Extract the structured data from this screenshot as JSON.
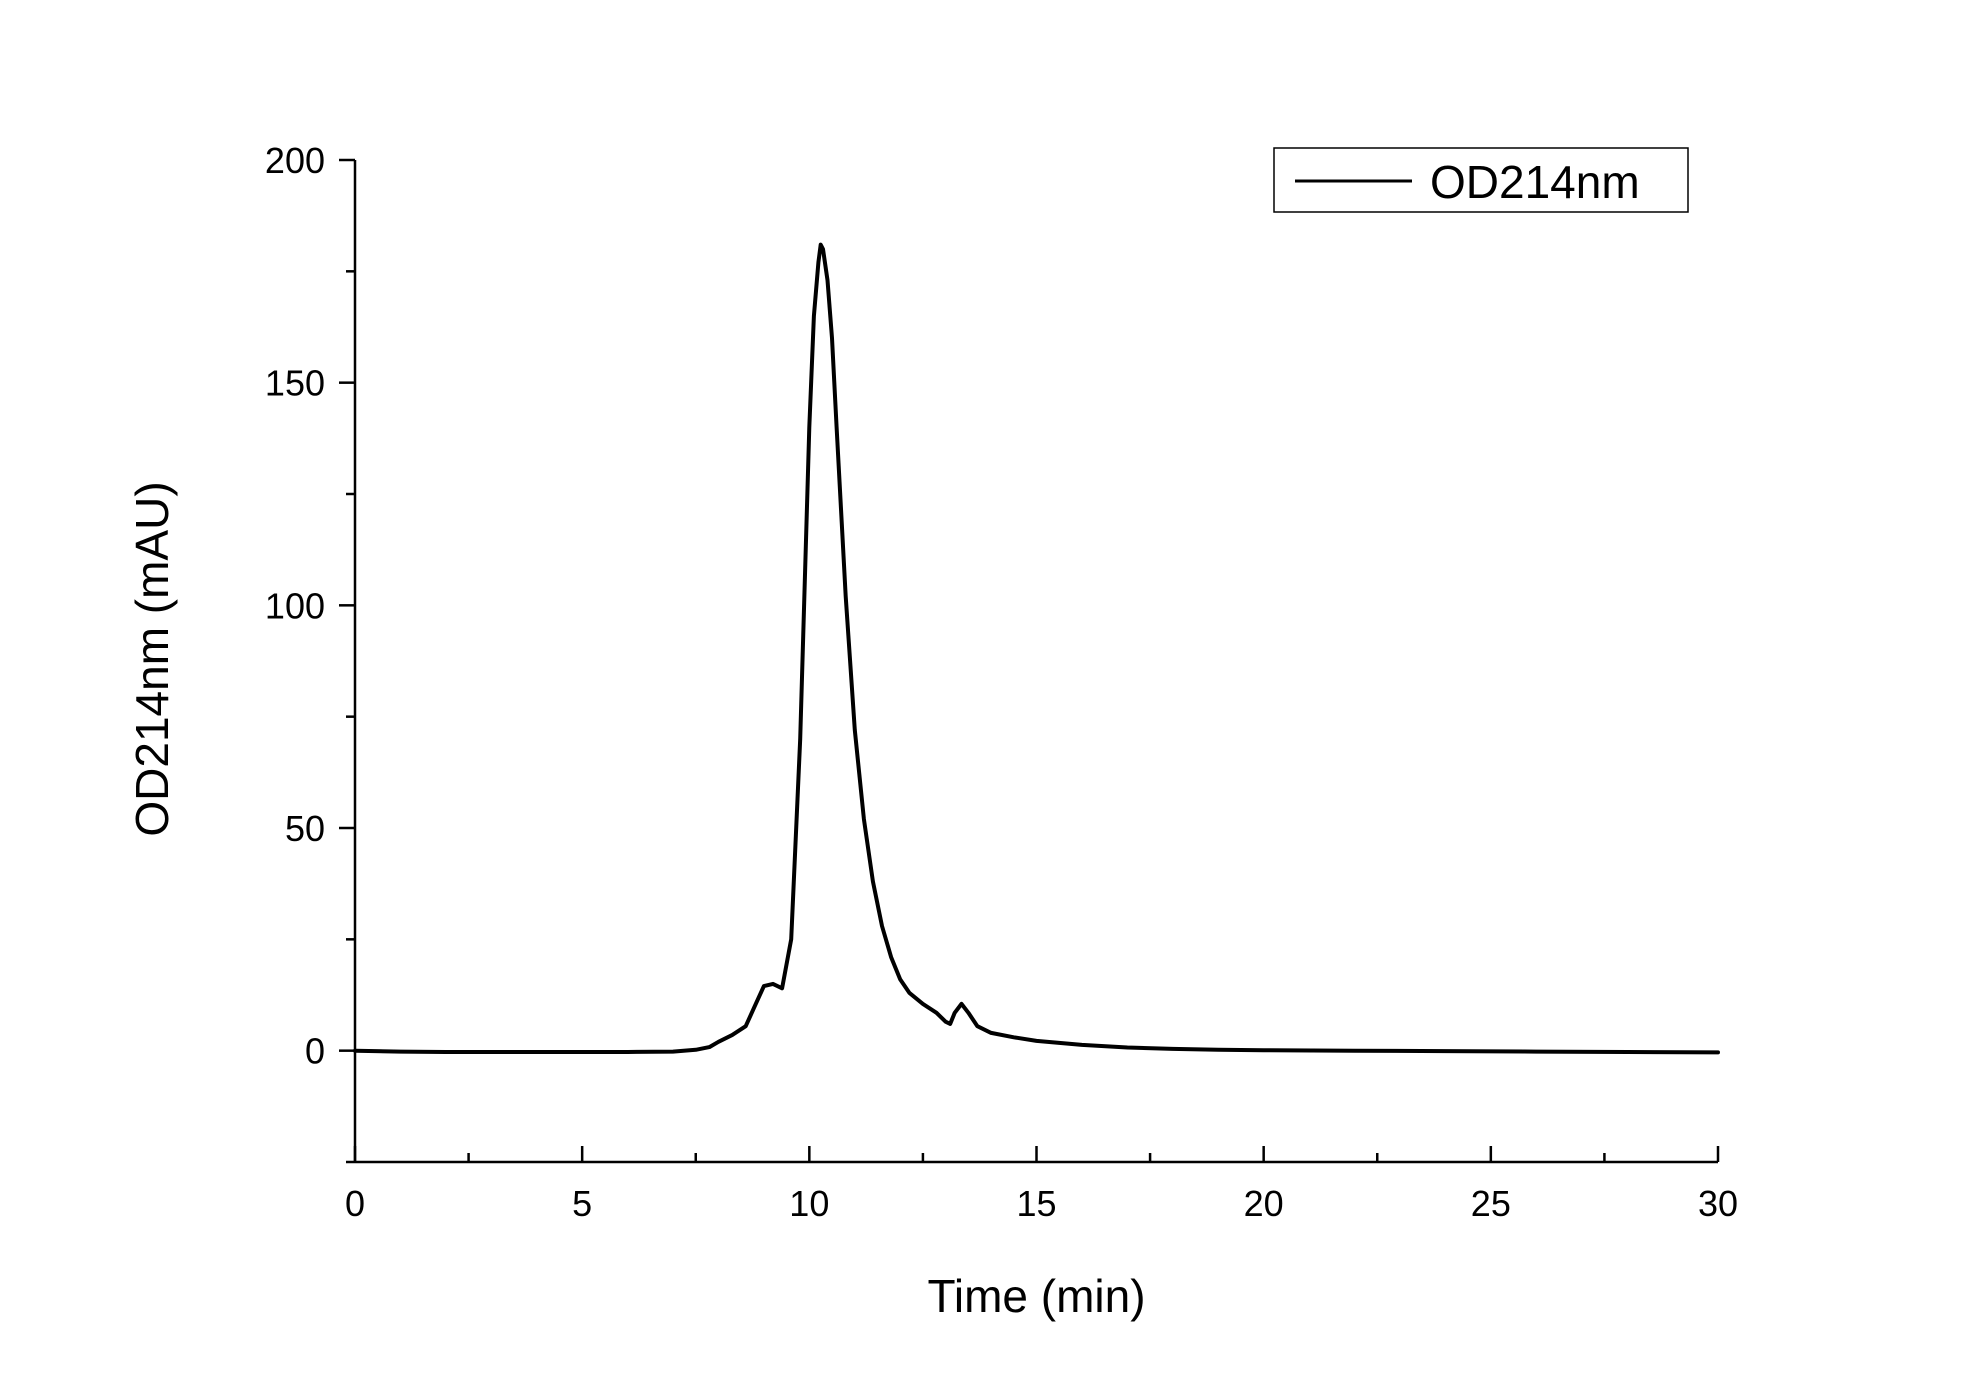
{
  "chart_data": {
    "type": "line",
    "title": "",
    "xlabel": "Time (min)",
    "ylabel": "OD214nm (mAU)",
    "xlim": [
      0,
      30
    ],
    "ylim": [
      -25,
      200
    ],
    "x_ticks": [
      "0",
      "5",
      "10",
      "15",
      "20",
      "25",
      "30"
    ],
    "y_ticks": [
      "0",
      "50",
      "100",
      "150",
      "200"
    ],
    "grid": false,
    "legend": {
      "placement": "top-right",
      "entries": [
        "OD214nm"
      ]
    },
    "line_color": "#000000",
    "series": [
      {
        "name": "OD214nm",
        "x": [
          0,
          1,
          2,
          3,
          4,
          5,
          6,
          7,
          7.5,
          7.8,
          8.0,
          8.3,
          8.6,
          8.8,
          9.0,
          9.2,
          9.4,
          9.6,
          9.8,
          10.0,
          10.1,
          10.2,
          10.25,
          10.3,
          10.4,
          10.5,
          10.6,
          10.8,
          11.0,
          11.2,
          11.4,
          11.6,
          11.8,
          12.0,
          12.2,
          12.5,
          12.8,
          13.0,
          13.1,
          13.2,
          13.35,
          13.5,
          13.7,
          14.0,
          14.5,
          15.0,
          16.0,
          17.0,
          18.0,
          19.0,
          20.0,
          22.0,
          24.0,
          26.0,
          28.0,
          30.0
        ],
        "y": [
          0,
          -0.2,
          -0.3,
          -0.3,
          -0.3,
          -0.3,
          -0.3,
          -0.2,
          0.2,
          0.8,
          2.0,
          3.5,
          5.5,
          10.0,
          14.5,
          15.0,
          14.0,
          25.0,
          70.0,
          140.0,
          165.0,
          177.0,
          181.0,
          180.0,
          173.0,
          160.0,
          140.0,
          102.0,
          72.0,
          52.0,
          38.0,
          28.0,
          21.0,
          16.0,
          13.0,
          10.5,
          8.5,
          6.5,
          6.0,
          8.5,
          10.5,
          8.5,
          5.5,
          4.0,
          3.0,
          2.2,
          1.3,
          0.7,
          0.4,
          0.2,
          0.1,
          0.0,
          -0.1,
          -0.2,
          -0.3,
          -0.4
        ]
      }
    ]
  }
}
